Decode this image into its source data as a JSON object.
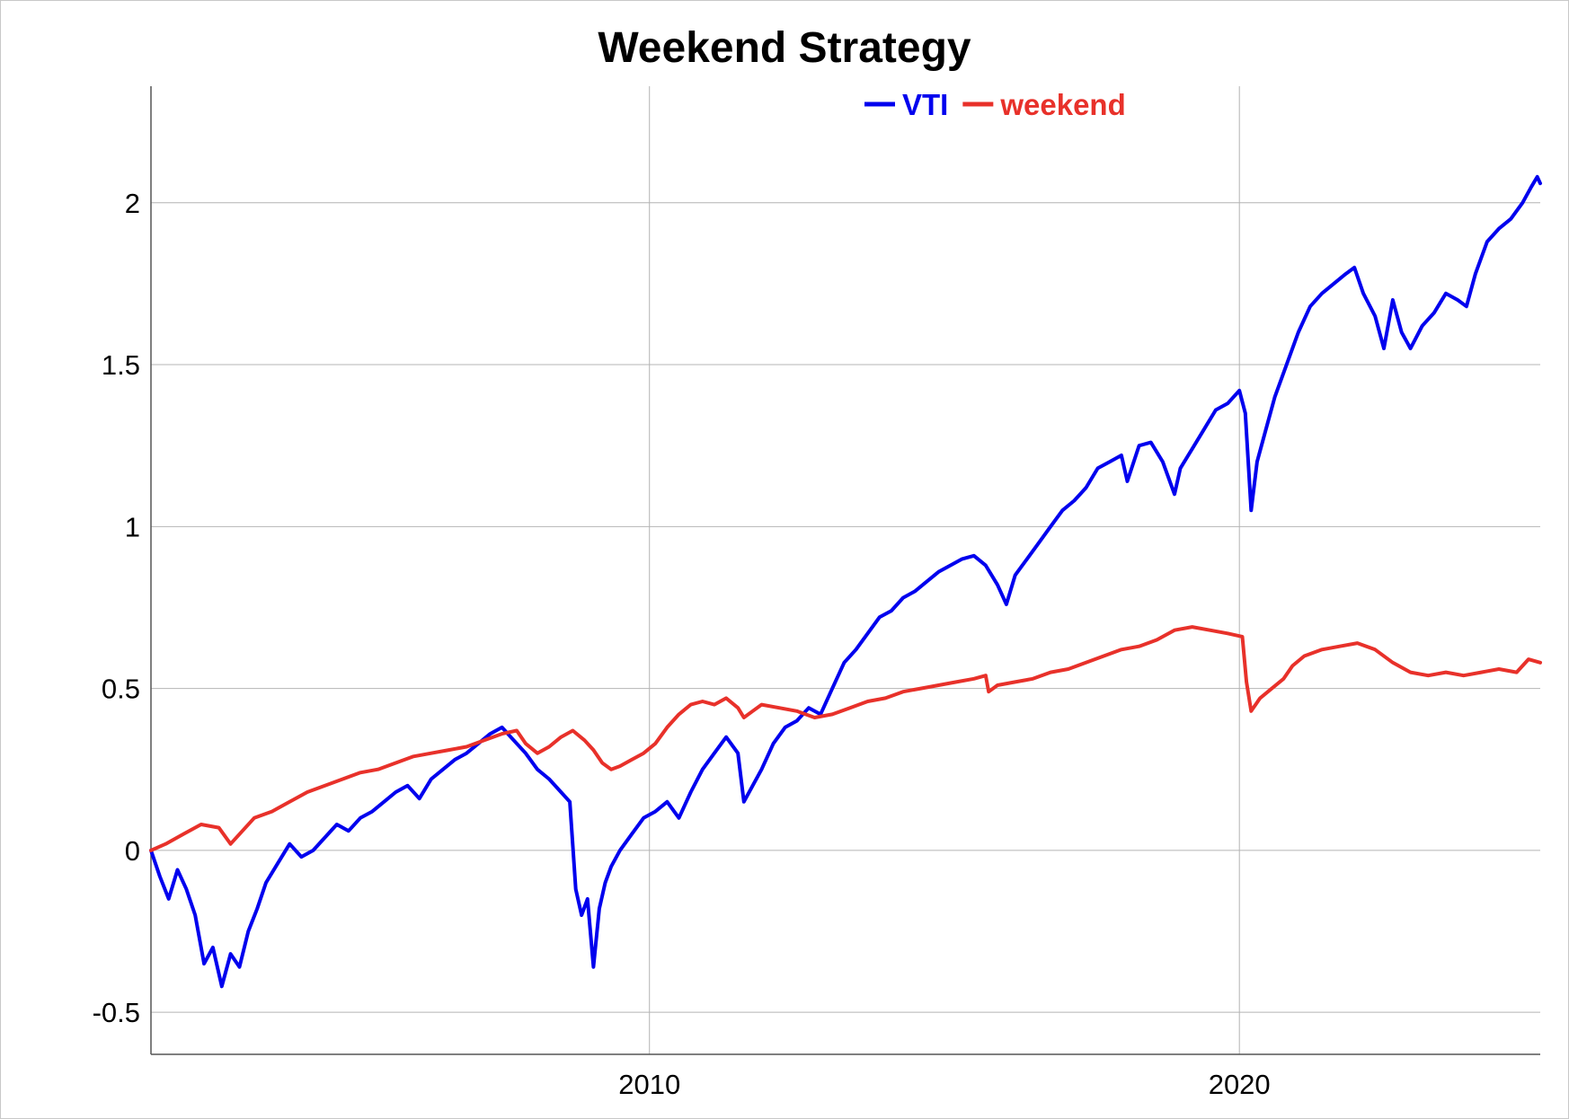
{
  "chart_data": {
    "type": "line",
    "title": "Weekend Strategy",
    "xlabel": "",
    "ylabel": "",
    "xlim": [
      2001.55,
      2025.1
    ],
    "ylim": [
      -0.63,
      2.36
    ],
    "x_ticks": [
      2010,
      2020
    ],
    "y_ticks": [
      -0.5,
      0,
      0.5,
      1,
      1.5,
      2
    ],
    "grid": true,
    "legend_position": "top-center",
    "colors": {
      "VTI": "#0000ee",
      "weekend": "#e8312a"
    },
    "series": [
      {
        "name": "VTI",
        "color": "#0000ee",
        "x": [
          2001.55,
          2001.7,
          2001.85,
          2002.0,
          2002.15,
          2002.3,
          2002.45,
          2002.6,
          2002.75,
          2002.9,
          2003.05,
          2003.2,
          2003.35,
          2003.5,
          2003.7,
          2003.9,
          2004.1,
          2004.3,
          2004.5,
          2004.7,
          2004.9,
          2005.1,
          2005.3,
          2005.5,
          2005.7,
          2005.9,
          2006.1,
          2006.3,
          2006.5,
          2006.7,
          2006.9,
          2007.1,
          2007.3,
          2007.5,
          2007.7,
          2007.9,
          2008.1,
          2008.3,
          2008.5,
          2008.65,
          2008.75,
          2008.85,
          2008.95,
          2009.05,
          2009.15,
          2009.25,
          2009.35,
          2009.5,
          2009.7,
          2009.9,
          2010.1,
          2010.3,
          2010.5,
          2010.7,
          2010.9,
          2011.1,
          2011.3,
          2011.5,
          2011.6,
          2011.75,
          2011.9,
          2012.1,
          2012.3,
          2012.5,
          2012.7,
          2012.9,
          2013.1,
          2013.3,
          2013.5,
          2013.7,
          2013.9,
          2014.1,
          2014.3,
          2014.5,
          2014.7,
          2014.9,
          2015.1,
          2015.3,
          2015.5,
          2015.7,
          2015.9,
          2016.05,
          2016.2,
          2016.4,
          2016.6,
          2016.8,
          2017.0,
          2017.2,
          2017.4,
          2017.6,
          2017.8,
          2018.0,
          2018.1,
          2018.3,
          2018.5,
          2018.7,
          2018.9,
          2019.0,
          2019.2,
          2019.4,
          2019.6,
          2019.8,
          2020.0,
          2020.1,
          2020.2,
          2020.3,
          2020.45,
          2020.6,
          2020.8,
          2021.0,
          2021.2,
          2021.4,
          2021.6,
          2021.8,
          2021.95,
          2022.1,
          2022.3,
          2022.45,
          2022.6,
          2022.75,
          2022.9,
          2023.1,
          2023.3,
          2023.5,
          2023.7,
          2023.85,
          2024.0,
          2024.2,
          2024.4,
          2024.6,
          2024.8,
          2024.95,
          2025.05,
          2025.1
        ],
        "y": [
          0.0,
          -0.08,
          -0.15,
          -0.06,
          -0.12,
          -0.2,
          -0.35,
          -0.3,
          -0.42,
          -0.32,
          -0.36,
          -0.25,
          -0.18,
          -0.1,
          -0.04,
          0.02,
          -0.02,
          0.0,
          0.04,
          0.08,
          0.06,
          0.1,
          0.12,
          0.15,
          0.18,
          0.2,
          0.16,
          0.22,
          0.25,
          0.28,
          0.3,
          0.33,
          0.36,
          0.38,
          0.34,
          0.3,
          0.25,
          0.22,
          0.18,
          0.15,
          -0.12,
          -0.2,
          -0.15,
          -0.36,
          -0.18,
          -0.1,
          -0.05,
          0.0,
          0.05,
          0.1,
          0.12,
          0.15,
          0.1,
          0.18,
          0.25,
          0.3,
          0.35,
          0.3,
          0.15,
          0.2,
          0.25,
          0.33,
          0.38,
          0.4,
          0.44,
          0.42,
          0.5,
          0.58,
          0.62,
          0.67,
          0.72,
          0.74,
          0.78,
          0.8,
          0.83,
          0.86,
          0.88,
          0.9,
          0.91,
          0.88,
          0.82,
          0.76,
          0.85,
          0.9,
          0.95,
          1.0,
          1.05,
          1.08,
          1.12,
          1.18,
          1.2,
          1.22,
          1.14,
          1.25,
          1.26,
          1.2,
          1.1,
          1.18,
          1.24,
          1.3,
          1.36,
          1.38,
          1.42,
          1.35,
          1.05,
          1.2,
          1.3,
          1.4,
          1.5,
          1.6,
          1.68,
          1.72,
          1.75,
          1.78,
          1.8,
          1.72,
          1.65,
          1.55,
          1.7,
          1.6,
          1.55,
          1.62,
          1.66,
          1.72,
          1.7,
          1.68,
          1.78,
          1.88,
          1.92,
          1.95,
          2.0,
          2.05,
          2.08,
          2.06
        ]
      },
      {
        "name": "weekend",
        "color": "#e8312a",
        "x": [
          2001.55,
          2001.8,
          2002.1,
          2002.4,
          2002.7,
          2002.9,
          2003.1,
          2003.3,
          2003.6,
          2003.9,
          2004.2,
          2004.5,
          2004.8,
          2005.1,
          2005.4,
          2005.7,
          2006.0,
          2006.3,
          2006.6,
          2006.9,
          2007.2,
          2007.5,
          2007.75,
          2007.9,
          2008.1,
          2008.3,
          2008.5,
          2008.7,
          2008.9,
          2009.05,
          2009.2,
          2009.35,
          2009.5,
          2009.7,
          2009.9,
          2010.1,
          2010.3,
          2010.5,
          2010.7,
          2010.9,
          2011.1,
          2011.3,
          2011.5,
          2011.6,
          2011.75,
          2011.9,
          2012.2,
          2012.5,
          2012.8,
          2013.1,
          2013.4,
          2013.7,
          2014.0,
          2014.3,
          2014.6,
          2014.9,
          2015.2,
          2015.5,
          2015.7,
          2015.75,
          2015.9,
          2016.2,
          2016.5,
          2016.8,
          2017.1,
          2017.4,
          2017.7,
          2018.0,
          2018.3,
          2018.6,
          2018.9,
          2019.2,
          2019.5,
          2019.8,
          2020.05,
          2020.12,
          2020.2,
          2020.35,
          2020.55,
          2020.75,
          2020.9,
          2021.1,
          2021.4,
          2021.7,
          2022.0,
          2022.3,
          2022.6,
          2022.9,
          2023.2,
          2023.5,
          2023.8,
          2024.1,
          2024.4,
          2024.7,
          2024.8,
          2024.9,
          2025.1
        ],
        "y": [
          0.0,
          0.02,
          0.05,
          0.08,
          0.07,
          0.02,
          0.06,
          0.1,
          0.12,
          0.15,
          0.18,
          0.2,
          0.22,
          0.24,
          0.25,
          0.27,
          0.29,
          0.3,
          0.31,
          0.32,
          0.34,
          0.36,
          0.37,
          0.33,
          0.3,
          0.32,
          0.35,
          0.37,
          0.34,
          0.31,
          0.27,
          0.25,
          0.26,
          0.28,
          0.3,
          0.33,
          0.38,
          0.42,
          0.45,
          0.46,
          0.45,
          0.47,
          0.44,
          0.41,
          0.43,
          0.45,
          0.44,
          0.43,
          0.41,
          0.42,
          0.44,
          0.46,
          0.47,
          0.49,
          0.5,
          0.51,
          0.52,
          0.53,
          0.54,
          0.49,
          0.51,
          0.52,
          0.53,
          0.55,
          0.56,
          0.58,
          0.6,
          0.62,
          0.63,
          0.65,
          0.68,
          0.69,
          0.68,
          0.67,
          0.66,
          0.52,
          0.43,
          0.47,
          0.5,
          0.53,
          0.57,
          0.6,
          0.62,
          0.63,
          0.64,
          0.62,
          0.58,
          0.55,
          0.54,
          0.55,
          0.54,
          0.55,
          0.56,
          0.55,
          0.57,
          0.59,
          0.58
        ]
      }
    ]
  }
}
